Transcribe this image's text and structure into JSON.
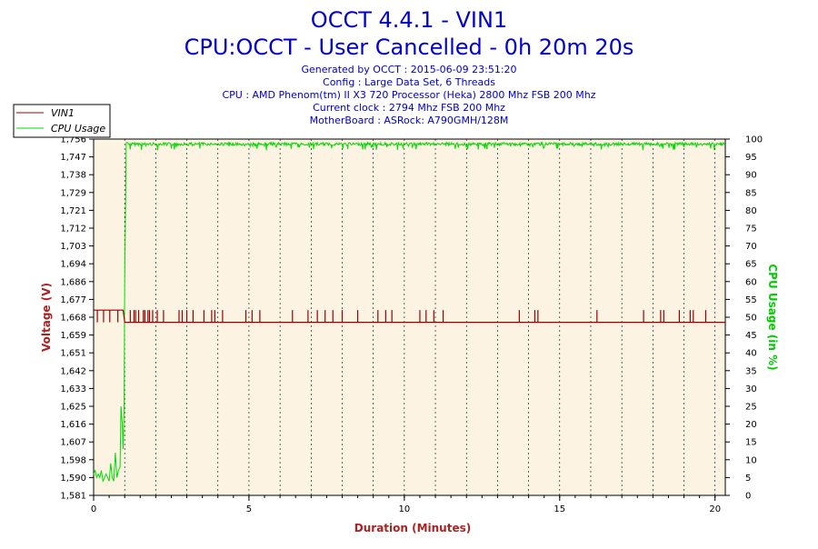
{
  "chart_data": {
    "type": "line",
    "title": "OCCT 4.4.1 - VIN1",
    "subtitle": "CPU:OCCT - User Cancelled - 0h 20m 20s",
    "info_lines": [
      "Generated by OCCT : 2015-06-09 23:51:20",
      "Config : Large Data Set, 6 Threads",
      "CPU : AMD Phenom(tm) II X3 720 Processor (Heka) 2800 Mhz FSB 200 Mhz",
      "Current clock : 2794 Mhz FSB 200 Mhz",
      "MotherBoard : ASRock: A790GMH/128M"
    ],
    "xlabel": "Duration (Minutes)",
    "ylabel_left": "Voltage (V)",
    "ylabel_right": "CPU Usage (in %)",
    "xlim": [
      0,
      20.33
    ],
    "ylim_left": [
      1.581,
      1.756
    ],
    "ylim_right": [
      0,
      100
    ],
    "x_ticks": [
      "0",
      "5",
      "10",
      "15",
      "20"
    ],
    "y_left_ticks": [
      "1,756",
      "1,747",
      "1,738",
      "1,729",
      "1,721",
      "1,712",
      "1,703",
      "1,694",
      "1,686",
      "1,677",
      "1,668",
      "1,659",
      "1,651",
      "1,642",
      "1,633",
      "1,625",
      "1,616",
      "1,607",
      "1,598",
      "1,590",
      "1,581"
    ],
    "y_right_ticks": [
      "100",
      "95",
      "90",
      "85",
      "80",
      "75",
      "70",
      "65",
      "60",
      "55",
      "50",
      "45",
      "40",
      "35",
      "30",
      "25",
      "20",
      "15",
      "10",
      "5",
      "0"
    ],
    "grid": "vertical dashed",
    "legend": {
      "placement": "top-left",
      "entries": [
        "VIN1",
        "CPU Usage"
      ]
    },
    "colors": {
      "vin1": "#990000",
      "cpu": "#00dd00",
      "plot_bg": "#fdf3e3",
      "title": "#0000cc",
      "axis_label": "#aa2222"
    },
    "series": [
      {
        "name": "VIN1",
        "axis": "left",
        "baseline": 1.666,
        "x": [
          0,
          0.15,
          0.35,
          0.55,
          0.9,
          0.95,
          1.0,
          1.05,
          1.1,
          2,
          5,
          10,
          15,
          20,
          20.33
        ],
        "values": [
          1.672,
          1.672,
          1.672,
          1.672,
          1.672,
          1.672,
          1.666,
          1.666,
          1.666,
          1.666,
          1.666,
          1.666,
          1.666,
          1.666,
          1.666
        ],
        "spikes_x": [
          0.12,
          0.32,
          0.52,
          0.78,
          1.18,
          1.3,
          1.35,
          1.45,
          1.6,
          1.65,
          1.75,
          1.8,
          1.9,
          2.05,
          2.25,
          2.75,
          2.85,
          3.0,
          3.2,
          3.55,
          3.8,
          3.9,
          4.15,
          4.9,
          5.1,
          5.35,
          6.4,
          6.9,
          7.2,
          7.45,
          7.7,
          8.0,
          8.5,
          9.15,
          9.4,
          9.6,
          10.5,
          10.7,
          10.95,
          11.25,
          13.7,
          14.2,
          14.3,
          16.2,
          17.7,
          18.25,
          18.35,
          18.85,
          19.2,
          19.3,
          19.7
        ],
        "spike_value": 1.672
      },
      {
        "name": "CPU Usage",
        "axis": "right",
        "x": [
          0,
          0.05,
          0.1,
          0.15,
          0.2,
          0.25,
          0.3,
          0.35,
          0.4,
          0.45,
          0.5,
          0.55,
          0.6,
          0.65,
          0.7,
          0.75,
          0.8,
          0.85,
          0.88,
          0.92,
          0.95,
          0.98,
          1.0,
          1.05,
          1.1,
          2,
          3,
          4,
          5,
          6,
          7,
          8,
          9,
          10,
          11,
          12,
          13,
          14,
          15,
          16,
          17,
          18,
          19,
          20,
          20.33
        ],
        "values": [
          6,
          7,
          5,
          6,
          5,
          7,
          4,
          5,
          6,
          5,
          4,
          9,
          5,
          4,
          12,
          5,
          7,
          8,
          25,
          20,
          13,
          25,
          60,
          99,
          99,
          99,
          99,
          99,
          99,
          99,
          99,
          99,
          99,
          99,
          99,
          99,
          99,
          99,
          99,
          99,
          99,
          99,
          99,
          99,
          99
        ],
        "steady_value": 99
      }
    ]
  }
}
